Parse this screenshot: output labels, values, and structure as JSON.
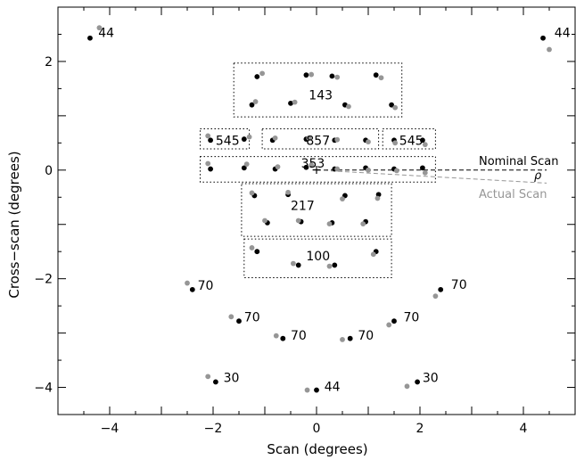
{
  "chart_data": {
    "type": "scatter",
    "xlabel": "Scan (degrees)",
    "ylabel": "Cross−scan (degrees)",
    "xlim": [
      -5,
      5
    ],
    "ylim": [
      -4.5,
      3
    ],
    "xticks": [
      -4,
      -2,
      0,
      2,
      4
    ],
    "xtick_labels": [
      "−4",
      "−2",
      "0",
      "2",
      "4"
    ],
    "yticks": [
      -4,
      -2,
      0,
      2
    ],
    "ytick_labels": [
      "−4",
      "−2",
      "0",
      "2"
    ],
    "colors": {
      "nominal": "#000000",
      "actual": "#969696"
    },
    "series": [
      {
        "name": "Nominal",
        "points": [
          [
            -4.38,
            2.43
          ],
          [
            4.38,
            2.43
          ],
          [
            -1.15,
            1.72
          ],
          [
            -0.2,
            1.75
          ],
          [
            0.3,
            1.73
          ],
          [
            1.15,
            1.75
          ],
          [
            -1.25,
            1.2
          ],
          [
            -0.5,
            1.23
          ],
          [
            0.55,
            1.2
          ],
          [
            1.45,
            1.2
          ],
          [
            -2.05,
            0.55
          ],
          [
            -1.4,
            0.57
          ],
          [
            -0.85,
            0.55
          ],
          [
            -0.2,
            0.57
          ],
          [
            0.35,
            0.55
          ],
          [
            0.95,
            0.55
          ],
          [
            1.5,
            0.55
          ],
          [
            2.05,
            0.55
          ],
          [
            -2.05,
            0.02
          ],
          [
            -1.4,
            0.04
          ],
          [
            -0.8,
            0.02
          ],
          [
            -0.2,
            0.05
          ],
          [
            0.35,
            0.02
          ],
          [
            0.95,
            0.04
          ],
          [
            1.5,
            0.02
          ],
          [
            2.05,
            0.04
          ],
          [
            -1.2,
            -0.47
          ],
          [
            -0.55,
            -0.45
          ],
          [
            0.55,
            -0.47
          ],
          [
            1.2,
            -0.45
          ],
          [
            -0.95,
            -0.97
          ],
          [
            -0.3,
            -0.95
          ],
          [
            0.3,
            -0.97
          ],
          [
            0.95,
            -0.95
          ],
          [
            -1.15,
            -1.5
          ],
          [
            -0.35,
            -1.75
          ],
          [
            0.35,
            -1.75
          ],
          [
            1.15,
            -1.5
          ],
          [
            -2.4,
            -2.2
          ],
          [
            2.4,
            -2.2
          ],
          [
            -1.5,
            -2.78
          ],
          [
            1.5,
            -2.78
          ],
          [
            -0.65,
            -3.1
          ],
          [
            0.65,
            -3.1
          ],
          [
            -1.95,
            -3.9
          ],
          [
            1.95,
            -3.9
          ],
          [
            0,
            -4.05
          ]
        ]
      },
      {
        "name": "Actual",
        "points": [
          [
            -4.2,
            2.62
          ],
          [
            4.5,
            2.22
          ],
          [
            -1.05,
            1.78
          ],
          [
            -0.1,
            1.76
          ],
          [
            0.4,
            1.71
          ],
          [
            1.25,
            1.7
          ],
          [
            -1.18,
            1.26
          ],
          [
            -0.42,
            1.25
          ],
          [
            0.62,
            1.17
          ],
          [
            1.52,
            1.15
          ],
          [
            -2.1,
            0.63
          ],
          [
            -1.3,
            0.61
          ],
          [
            -0.8,
            0.59
          ],
          [
            -0.15,
            0.59
          ],
          [
            0.4,
            0.56
          ],
          [
            1.0,
            0.52
          ],
          [
            1.52,
            0.5
          ],
          [
            2.1,
            0.47
          ],
          [
            -2.1,
            0.12
          ],
          [
            -1.35,
            0.11
          ],
          [
            -0.75,
            0.06
          ],
          [
            -0.1,
            0.09
          ],
          [
            0.4,
            0.02
          ],
          [
            1.0,
            0.0
          ],
          [
            1.55,
            -0.01
          ],
          [
            2.1,
            -0.05
          ],
          [
            -1.25,
            -0.42
          ],
          [
            -0.55,
            -0.41
          ],
          [
            0.5,
            -0.53
          ],
          [
            1.18,
            -0.52
          ],
          [
            -1.0,
            -0.93
          ],
          [
            -0.35,
            -0.93
          ],
          [
            0.25,
            -0.99
          ],
          [
            0.9,
            -0.99
          ],
          [
            -1.25,
            -1.43
          ],
          [
            -0.45,
            -1.72
          ],
          [
            0.25,
            -1.77
          ],
          [
            1.1,
            -1.55
          ],
          [
            -2.5,
            -2.08
          ],
          [
            2.3,
            -2.32
          ],
          [
            -1.65,
            -2.7
          ],
          [
            1.4,
            -2.85
          ],
          [
            -0.78,
            -3.05
          ],
          [
            0.5,
            -3.12
          ],
          [
            -2.1,
            -3.8
          ],
          [
            1.75,
            -3.98
          ],
          [
            -0.18,
            -4.05
          ]
        ]
      }
    ],
    "labels": [
      {
        "text": "44",
        "x": -4.22,
        "y": 2.53
      },
      {
        "text": "44",
        "x": 4.6,
        "y": 2.53
      },
      {
        "text": "143",
        "x": -0.15,
        "y": 1.38
      },
      {
        "text": "545",
        "x": -1.95,
        "y": 0.55
      },
      {
        "text": "857",
        "x": -0.2,
        "y": 0.55
      },
      {
        "text": "545",
        "x": 1.6,
        "y": 0.55
      },
      {
        "text": "353",
        "x": -0.3,
        "y": 0.13
      },
      {
        "text": "217",
        "x": -0.5,
        "y": -0.65
      },
      {
        "text": "100",
        "x": -0.2,
        "y": -1.58
      },
      {
        "text": "70",
        "x": -2.3,
        "y": -2.12
      },
      {
        "text": "70",
        "x": 2.6,
        "y": -2.1
      },
      {
        "text": "70",
        "x": -1.4,
        "y": -2.7
      },
      {
        "text": "70",
        "x": 1.68,
        "y": -2.7
      },
      {
        "text": "70",
        "x": -0.5,
        "y": -3.04
      },
      {
        "text": "70",
        "x": 0.8,
        "y": -3.04
      },
      {
        "text": "30",
        "x": -1.8,
        "y": -3.82
      },
      {
        "text": "30",
        "x": 2.05,
        "y": -3.82
      },
      {
        "text": "44",
        "x": 0.15,
        "y": -3.98
      }
    ],
    "boxes": [
      {
        "x0": -1.6,
        "x1": 1.65,
        "y0": 0.98,
        "y1": 1.97
      },
      {
        "x0": -2.25,
        "x1": -1.3,
        "y0": 0.39,
        "y1": 0.76
      },
      {
        "x0": -1.05,
        "x1": 1.2,
        "y0": 0.39,
        "y1": 0.76
      },
      {
        "x0": 1.28,
        "x1": 2.3,
        "y0": 0.39,
        "y1": 0.76
      },
      {
        "x0": -2.25,
        "x1": 2.3,
        "y0": -0.22,
        "y1": 0.25
      },
      {
        "x0": -1.45,
        "x1": 1.45,
        "y0": -1.22,
        "y1": -0.25
      },
      {
        "x0": -1.4,
        "x1": 1.45,
        "y0": -1.98,
        "y1": -1.27
      }
    ],
    "annotations": {
      "nominal_scan": "Nominal Scan",
      "actual_scan": "Actual Scan",
      "rho": "ρ"
    }
  }
}
